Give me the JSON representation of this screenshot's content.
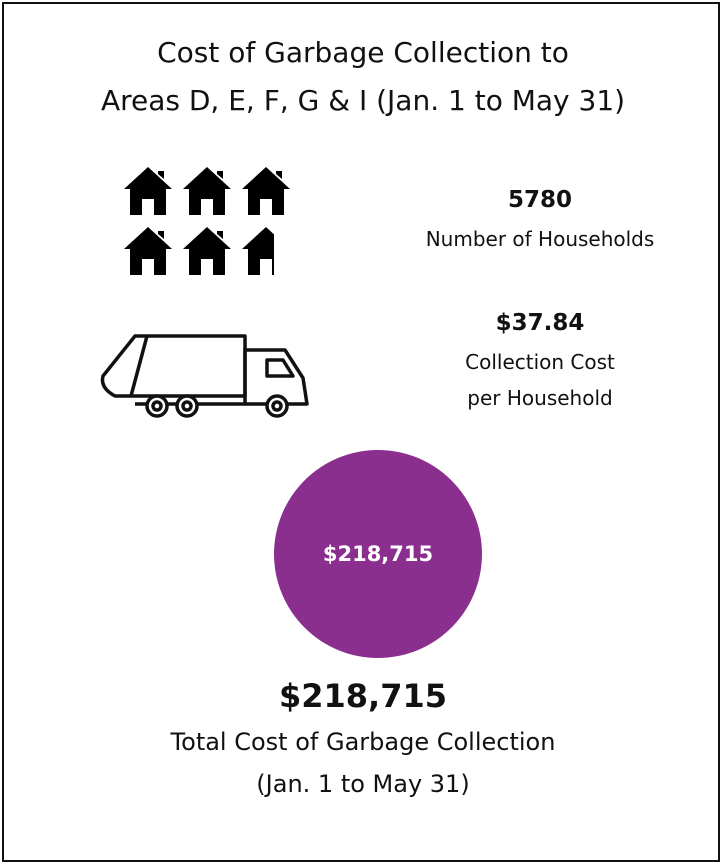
{
  "header": {
    "title_lines": [
      "Cost of Garbage Collection to",
      "Areas D, E, F, G & I (Jan. 1 to May 31)"
    ]
  },
  "stats": [
    {
      "value": "5780",
      "label_lines": [
        "Number of Households"
      ]
    },
    {
      "value": "$37.84",
      "label_lines": [
        "Collection Cost",
        "per Household"
      ]
    }
  ],
  "total": {
    "circle_label": "$218,715",
    "value": "$218,715",
    "label_lines": [
      "Total Cost of Garbage Collection",
      "(Jan. 1 to May 31)"
    ]
  }
}
